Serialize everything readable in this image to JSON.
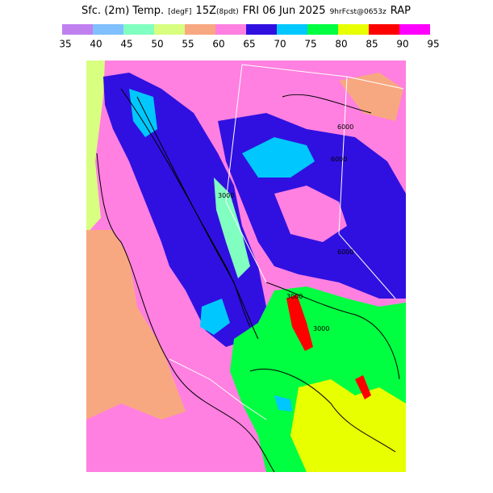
{
  "title_parts": [
    "Sfc. (2m) Temp.",
    "[degF]",
    "15Z",
    "(8pdt)",
    "FRI 06 Jun 2025",
    "9hrFcst@0653z",
    "RAP"
  ],
  "colorbar": {
    "ticks": [
      35,
      40,
      45,
      50,
      55,
      60,
      65,
      70,
      75,
      80,
      85,
      90,
      95
    ],
    "colors": [
      "#c080f0",
      "#80c0ff",
      "#80ffc0",
      "#d8ff80",
      "#f8a880",
      "#ff80e0",
      "#3010e0",
      "#00c8ff",
      "#00ff40",
      "#e8ff00",
      "#ff0000",
      "#ff00ff"
    ]
  },
  "contour_labels": [
    "6000",
    "6000",
    "3000",
    "3000",
    "6000",
    "3000"
  ]
}
